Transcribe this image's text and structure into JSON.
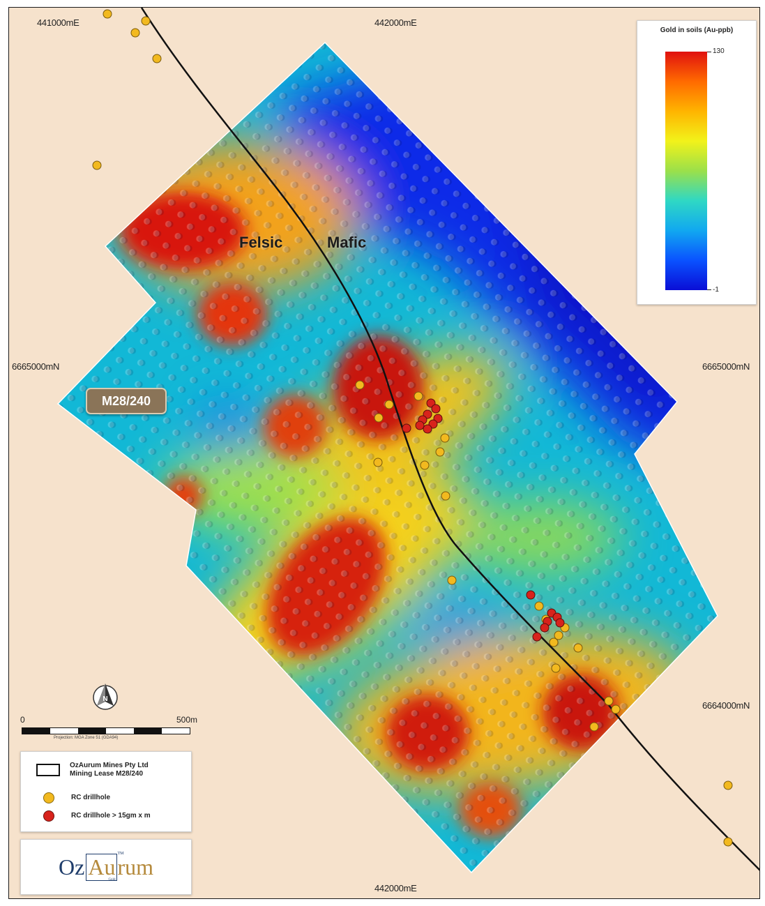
{
  "grid": {
    "easting_top_left": "441000mE",
    "easting_top_center": "442000mE",
    "easting_bottom": "442000mE",
    "northing_left": "6665000mN",
    "northing_right_upper": "6665000mN",
    "northing_right_lower": "6664000mN"
  },
  "tenement": {
    "label": "M28/240"
  },
  "geology": {
    "felsic": "Felsic",
    "mafic": "Mafic"
  },
  "colorbar": {
    "title": "Gold in soils (Au-ppb)",
    "max_label": "130",
    "min_label": "-1",
    "colors": [
      "#e0110f",
      "#ff6a00",
      "#ffb400",
      "#f2f21a",
      "#9be04a",
      "#2fd8c4",
      "#11a8f0",
      "#0a52ff",
      "#0a0ed6"
    ]
  },
  "scale_bar": {
    "start_label": "0",
    "end_label": "500m",
    "projection": "Projection: MGA Zone 51 (GDA94)"
  },
  "north_arrow": {
    "icon": "north-arrow-icon",
    "letter": "N"
  },
  "legend": {
    "lease_label_line1": "OzAurum Mines Pty Ltd",
    "lease_label_line2": "Mining Lease M28/240",
    "rc_label": "RC drillhole",
    "rc_high_label": "RC drillhole > 15gm x m",
    "rc_color": "#f2b91f",
    "rc_high_color": "#d8231c"
  },
  "logo": {
    "oz": "Oz",
    "au": "Au",
    "rum": "rum",
    "tm": "TM",
    "gold": "Gold"
  }
}
